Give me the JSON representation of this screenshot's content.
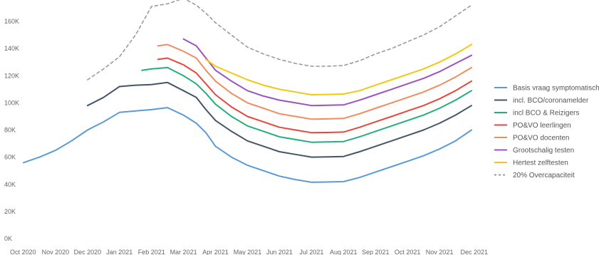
{
  "chart_data": {
    "type": "line",
    "grid": false,
    "legend_position": "right",
    "x": [
      "Oct 2020",
      "Nov 2020",
      "Dec 2020",
      "Jan 2021",
      "Feb 2021",
      "Mar 2021",
      "Apr 2021",
      "May 2021",
      "Jun 2021",
      "Jul 2021",
      "Aug 2021",
      "Sep 2021",
      "Oct 2021",
      "Nov 2021",
      "Dec 2021"
    ],
    "ylim": [
      0,
      170000
    ],
    "yticks": [
      {
        "value": 0,
        "label": "0K"
      },
      {
        "value": 20000,
        "label": "20K"
      },
      {
        "value": 40000,
        "label": "40K"
      },
      {
        "value": 60000,
        "label": "60K"
      },
      {
        "value": 80000,
        "label": "80K"
      },
      {
        "value": 100000,
        "label": "100K"
      },
      {
        "value": 120000,
        "label": "120K"
      },
      {
        "value": 140000,
        "label": "140K"
      },
      {
        "value": 160000,
        "label": "160K"
      }
    ],
    "series": [
      {
        "name": "Basis vraag symptomatisch",
        "color": "#5b9bd5",
        "dashed": false,
        "points": [
          [
            0,
            56000
          ],
          [
            0.5,
            60000
          ],
          [
            1,
            65000
          ],
          [
            1.5,
            72000
          ],
          [
            2,
            80000
          ],
          [
            2.5,
            86000
          ],
          [
            3,
            93000
          ],
          [
            3.5,
            94000
          ],
          [
            4,
            95000
          ],
          [
            4.5,
            96500
          ],
          [
            5,
            91000
          ],
          [
            5.4,
            85000
          ],
          [
            5.7,
            78000
          ],
          [
            6,
            68000
          ],
          [
            6.5,
            60000
          ],
          [
            7,
            54000
          ],
          [
            7.5,
            50000
          ],
          [
            8,
            46000
          ],
          [
            8.5,
            43500
          ],
          [
            9,
            41500
          ],
          [
            9.5,
            41700
          ],
          [
            10,
            42000
          ],
          [
            10.5,
            45000
          ],
          [
            11,
            49000
          ],
          [
            11.5,
            53000
          ],
          [
            12,
            57000
          ],
          [
            12.5,
            61000
          ],
          [
            13,
            66000
          ],
          [
            13.5,
            72000
          ],
          [
            14,
            80000
          ]
        ]
      },
      {
        "name": "incl. BCO/coronamelder",
        "color": "#44546a",
        "dashed": false,
        "points": [
          [
            2,
            98000
          ],
          [
            2.5,
            104000
          ],
          [
            3,
            112000
          ],
          [
            3.5,
            113000
          ],
          [
            4,
            113500
          ],
          [
            4.5,
            115000
          ],
          [
            5,
            109000
          ],
          [
            5.4,
            104000
          ],
          [
            5.7,
            95000
          ],
          [
            6,
            87000
          ],
          [
            6.5,
            79000
          ],
          [
            7,
            72000
          ],
          [
            7.5,
            68000
          ],
          [
            8,
            64000
          ],
          [
            8.5,
            62000
          ],
          [
            9,
            60000
          ],
          [
            9.5,
            60200
          ],
          [
            10,
            60500
          ],
          [
            10.5,
            64000
          ],
          [
            11,
            68000
          ],
          [
            11.5,
            72000
          ],
          [
            12,
            76000
          ],
          [
            12.5,
            80000
          ],
          [
            13,
            85000
          ],
          [
            13.5,
            91000
          ],
          [
            14,
            98000
          ]
        ]
      },
      {
        "name": "incl BCO & Reizigers",
        "color": "#21b07a",
        "dashed": false,
        "points": [
          [
            3.7,
            124000
          ],
          [
            4,
            125000
          ],
          [
            4.5,
            126000
          ],
          [
            5,
            120000
          ],
          [
            5.4,
            114000
          ],
          [
            5.7,
            107000
          ],
          [
            6,
            99000
          ],
          [
            6.5,
            90000
          ],
          [
            7,
            83000
          ],
          [
            7.5,
            79000
          ],
          [
            8,
            75000
          ],
          [
            8.5,
            73000
          ],
          [
            9,
            71000
          ],
          [
            9.5,
            71200
          ],
          [
            10,
            71500
          ],
          [
            10.5,
            75000
          ],
          [
            11,
            79000
          ],
          [
            11.5,
            83000
          ],
          [
            12,
            87000
          ],
          [
            12.5,
            91000
          ],
          [
            13,
            96000
          ],
          [
            13.5,
            102000
          ],
          [
            14,
            109000
          ]
        ]
      },
      {
        "name": "PO&VO leerlingen",
        "color": "#e8483c",
        "dashed": false,
        "points": [
          [
            4.2,
            132000
          ],
          [
            4.5,
            133000
          ],
          [
            5,
            128000
          ],
          [
            5.4,
            122000
          ],
          [
            5.7,
            114000
          ],
          [
            6,
            106000
          ],
          [
            6.5,
            97000
          ],
          [
            7,
            90000
          ],
          [
            7.5,
            86000
          ],
          [
            8,
            82000
          ],
          [
            8.5,
            80000
          ],
          [
            9,
            78000
          ],
          [
            9.5,
            78200
          ],
          [
            10,
            78500
          ],
          [
            10.5,
            82000
          ],
          [
            11,
            86000
          ],
          [
            11.5,
            90000
          ],
          [
            12,
            94000
          ],
          [
            12.5,
            98000
          ],
          [
            13,
            103000
          ],
          [
            13.5,
            109000
          ],
          [
            14,
            116000
          ]
        ]
      },
      {
        "name": "PO&VO docenten",
        "color": "#f08d5e",
        "dashed": false,
        "points": [
          [
            4.2,
            142000
          ],
          [
            4.5,
            143000
          ],
          [
            5,
            138000
          ],
          [
            5.4,
            133000
          ],
          [
            5.7,
            124000
          ],
          [
            6,
            116000
          ],
          [
            6.5,
            107000
          ],
          [
            7,
            100000
          ],
          [
            7.5,
            96000
          ],
          [
            8,
            92000
          ],
          [
            8.5,
            90000
          ],
          [
            9,
            88000
          ],
          [
            9.5,
            88200
          ],
          [
            10,
            88500
          ],
          [
            10.5,
            92000
          ],
          [
            11,
            96000
          ],
          [
            11.5,
            100000
          ],
          [
            12,
            104000
          ],
          [
            12.5,
            108000
          ],
          [
            13,
            113000
          ],
          [
            13.5,
            119000
          ],
          [
            14,
            126000
          ]
        ]
      },
      {
        "name": "Grootschalig testen",
        "color": "#9d52c1",
        "dashed": false,
        "points": [
          [
            5,
            147000
          ],
          [
            5.4,
            142000
          ],
          [
            5.7,
            133000
          ],
          [
            6,
            124000
          ],
          [
            6.5,
            116000
          ],
          [
            7,
            109000
          ],
          [
            7.5,
            105000
          ],
          [
            8,
            102000
          ],
          [
            8.5,
            100000
          ],
          [
            9,
            98000
          ],
          [
            9.5,
            98200
          ],
          [
            10,
            98500
          ],
          [
            10.5,
            102000
          ],
          [
            11,
            106000
          ],
          [
            11.5,
            110000
          ],
          [
            12,
            114000
          ],
          [
            12.5,
            118000
          ],
          [
            13,
            123000
          ],
          [
            13.5,
            129000
          ],
          [
            14,
            135000
          ]
        ]
      },
      {
        "name": "Hertest zelftesten",
        "color": "#f2c811",
        "dashed": false,
        "points": [
          [
            5.7,
            132000
          ],
          [
            6,
            127000
          ],
          [
            6.5,
            122000
          ],
          [
            7,
            117000
          ],
          [
            7.5,
            113000
          ],
          [
            8,
            110000
          ],
          [
            8.5,
            108000
          ],
          [
            9,
            106000
          ],
          [
            9.5,
            106200
          ],
          [
            10,
            106500
          ],
          [
            10.5,
            109000
          ],
          [
            11,
            113000
          ],
          [
            11.5,
            117000
          ],
          [
            12,
            121000
          ],
          [
            12.5,
            125000
          ],
          [
            13,
            130000
          ],
          [
            13.5,
            136000
          ],
          [
            14,
            143000
          ]
        ]
      },
      {
        "name": "20% Overcapaciteit",
        "color": "#9a9a9a",
        "dashed": true,
        "points": [
          [
            2,
            117000
          ],
          [
            2.5,
            125000
          ],
          [
            3,
            134000
          ],
          [
            3.5,
            150000
          ],
          [
            4,
            171000
          ],
          [
            4.5,
            173000
          ],
          [
            5,
            177000
          ],
          [
            5.4,
            172000
          ],
          [
            5.7,
            166000
          ],
          [
            6,
            159000
          ],
          [
            6.5,
            150000
          ],
          [
            7,
            141000
          ],
          [
            7.5,
            136000
          ],
          [
            8,
            132000
          ],
          [
            8.5,
            129000
          ],
          [
            9,
            127000
          ],
          [
            9.5,
            127000
          ],
          [
            10,
            127500
          ],
          [
            10.5,
            131000
          ],
          [
            11,
            136000
          ],
          [
            11.5,
            140000
          ],
          [
            12,
            145000
          ],
          [
            12.5,
            150000
          ],
          [
            13,
            156000
          ],
          [
            13.5,
            164000
          ],
          [
            14,
            172000
          ]
        ]
      }
    ]
  }
}
